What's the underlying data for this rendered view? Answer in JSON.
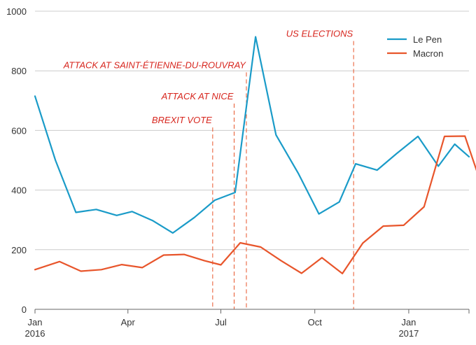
{
  "chart_data": {
    "type": "line",
    "ylim": [
      0,
      1000
    ],
    "yticks": [
      0,
      200,
      400,
      600,
      800,
      1000
    ],
    "xlim": [
      "2016-01",
      "2017-03"
    ],
    "xticks": [
      {
        "date": "2016-01",
        "label": "Jan",
        "sublabel": "2016"
      },
      {
        "date": "2016-04",
        "label": "Apr",
        "sublabel": ""
      },
      {
        "date": "2016-07",
        "label": "Jul",
        "sublabel": ""
      },
      {
        "date": "2016-10",
        "label": "Oct",
        "sublabel": ""
      },
      {
        "date": "2017-01",
        "label": "Jan",
        "sublabel": "2017"
      }
    ],
    "grid": true,
    "legend_position": "top-right",
    "series": [
      {
        "name": "Le Pen",
        "color": "#1a9bc8",
        "points": [
          [
            "2016-01-01",
            715
          ],
          [
            "2016-01-21",
            500
          ],
          [
            "2016-02-10",
            325
          ],
          [
            "2016-03-01",
            335
          ],
          [
            "2016-03-21",
            315
          ],
          [
            "2016-04-05",
            328
          ],
          [
            "2016-04-25",
            298
          ],
          [
            "2016-05-15",
            256
          ],
          [
            "2016-06-05",
            308
          ],
          [
            "2016-06-25",
            366
          ],
          [
            "2016-07-15",
            392
          ],
          [
            "2016-08-04",
            914
          ],
          [
            "2016-08-24",
            585
          ],
          [
            "2016-09-15",
            455
          ],
          [
            "2016-10-05",
            320
          ],
          [
            "2016-10-25",
            360
          ],
          [
            "2016-11-10",
            488
          ],
          [
            "2016-12-01",
            467
          ],
          [
            "2016-12-20",
            522
          ],
          [
            "2017-01-10",
            580
          ],
          [
            "2017-01-30",
            480
          ],
          [
            "2017-02-15",
            554
          ],
          [
            "2017-03-01",
            512
          ]
        ]
      },
      {
        "name": "Macron",
        "color": "#e8552b",
        "points": [
          [
            "2016-01-01",
            133
          ],
          [
            "2016-01-25",
            160
          ],
          [
            "2016-02-15",
            128
          ],
          [
            "2016-03-06",
            133
          ],
          [
            "2016-03-26",
            150
          ],
          [
            "2016-04-15",
            140
          ],
          [
            "2016-05-06",
            182
          ],
          [
            "2016-05-26",
            184
          ],
          [
            "2016-06-15",
            163
          ],
          [
            "2016-07-01",
            149
          ],
          [
            "2016-07-20",
            223
          ],
          [
            "2016-08-09",
            209
          ],
          [
            "2016-08-29",
            163
          ],
          [
            "2016-09-18",
            121
          ],
          [
            "2016-10-08",
            173
          ],
          [
            "2016-10-28",
            120
          ],
          [
            "2016-11-17",
            222
          ],
          [
            "2016-12-07",
            279
          ],
          [
            "2016-12-27",
            282
          ],
          [
            "2017-01-16",
            344
          ],
          [
            "2017-02-05",
            580
          ],
          [
            "2017-02-25",
            581
          ],
          [
            "2017-03-15",
            400
          ]
        ]
      }
    ],
    "annotations": [
      {
        "date": "2016-06-23",
        "label": "BREXIT VOTE",
        "top_value": 610
      },
      {
        "date": "2016-07-14",
        "label": "ATTACK AT NICE",
        "top_value": 690
      },
      {
        "date": "2016-07-26",
        "label": "ATTACK AT SAINT-ÉTIENNE-DU-ROUVRAY",
        "top_value": 795
      },
      {
        "date": "2016-11-08",
        "label": "US ELECTIONS",
        "top_value": 900
      }
    ]
  }
}
